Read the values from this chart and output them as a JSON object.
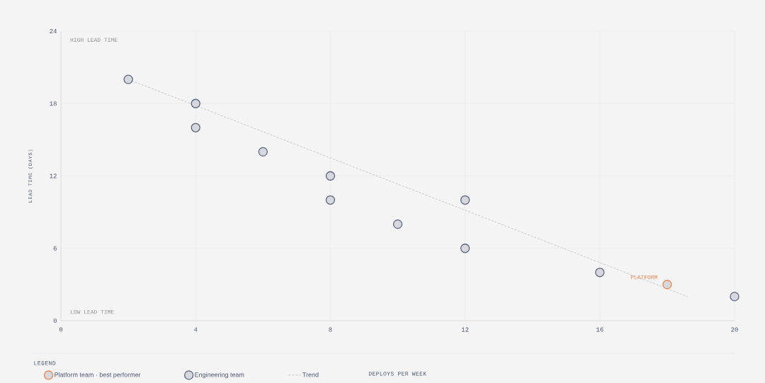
{
  "chart_data": {
    "type": "scatter",
    "ylabel": "LEAD TIME (DAYS)",
    "legend_title": "LEGEND",
    "xlim": [
      0,
      20
    ],
    "ylim": [
      0,
      24
    ],
    "xticks": [
      0,
      4,
      8,
      12,
      16,
      20
    ],
    "yticks": [
      0,
      6,
      12,
      18,
      24
    ],
    "grid": true,
    "legend": "bottom",
    "marker": "circle",
    "series": [
      {
        "name": "Trend",
        "type": "line",
        "color": "#c8c8c8",
        "line_style": "dashed",
        "marker": "none",
        "x": [
          2,
          18.6
        ],
        "values": [
          20,
          2
        ]
      },
      {
        "name": "Engineering team",
        "color": "#5b6680",
        "x": [
          2,
          4,
          4,
          6,
          8,
          8,
          10,
          12,
          12,
          16,
          20
        ],
        "values": [
          20,
          18,
          16,
          14,
          12,
          10,
          8,
          10,
          6,
          4,
          2
        ]
      },
      {
        "name": "Platform team · best performer",
        "color": "#e8804a",
        "x": [
          18
        ],
        "values": [
          3
        ]
      }
    ],
    "annotations": [
      "HIGH LEAD TIME",
      "LOW LEAD TIME",
      {
        "text": "PLATFORM",
        "x": 18,
        "y": 3
      },
      "DEPLOYS PER WEEK"
    ]
  }
}
